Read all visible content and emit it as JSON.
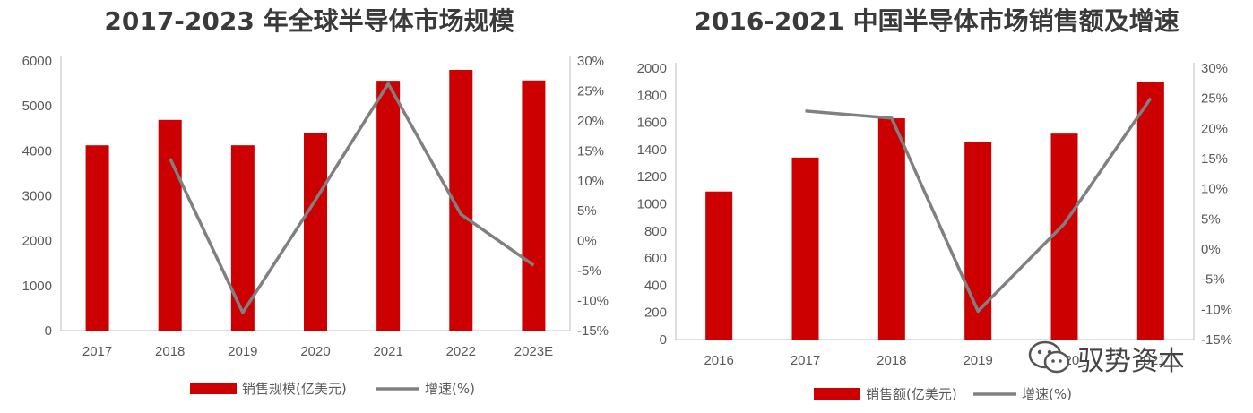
{
  "chart_data": [
    {
      "type": "bar+line",
      "title": "2017-2023 年全球半导体市场规模",
      "categories": [
        "2017",
        "2018",
        "2019",
        "2020",
        "2021",
        "2022",
        "2023E"
      ],
      "series": [
        {
          "name": "销售规模(亿美元)",
          "kind": "bar",
          "axis": "left",
          "color": "#cc0000",
          "values": [
            4122,
            4688,
            4123,
            4404,
            5559,
            5801,
            5566
          ]
        },
        {
          "name": "增速(%)",
          "kind": "line",
          "axis": "right",
          "color": "#808080",
          "values": [
            null,
            13.7,
            -12.0,
            6.8,
            26.2,
            4.4,
            -4.1
          ]
        }
      ],
      "ylim": [
        0,
        6000
      ],
      "yticks": [
        "0",
        "1000",
        "2000",
        "3000",
        "4000",
        "5000",
        "6000"
      ],
      "y2lim": [
        -15,
        30
      ],
      "y2ticks": [
        "-15%",
        "-10%",
        "-5%",
        "0%",
        "5%",
        "10%",
        "15%",
        "20%",
        "25%",
        "30%"
      ],
      "legend": "bottom",
      "grid": false
    },
    {
      "type": "bar+line",
      "title": "2016-2021 中国半导体市场销售额及增速",
      "categories": [
        "2016",
        "2017",
        "2018",
        "2019",
        "2020",
        "2021"
      ],
      "series": [
        {
          "name": "销售额(亿美元)",
          "kind": "bar",
          "axis": "left",
          "color": "#cc0000",
          "values": [
            1091,
            1341,
            1630,
            1456,
            1517,
            1900
          ]
        },
        {
          "name": "增速(%)",
          "kind": "line",
          "axis": "right",
          "color": "#808080",
          "values": [
            null,
            22.9,
            21.7,
            -10.3,
            4.2,
            25.0
          ]
        }
      ],
      "ylim": [
        0,
        2000
      ],
      "yticks": [
        "0",
        "200",
        "400",
        "600",
        "800",
        "1000",
        "1200",
        "1400",
        "1600",
        "1800",
        "2000"
      ],
      "y2lim": [
        -15,
        30
      ],
      "y2ticks": [
        "-15%",
        "-10%",
        "-5%",
        "0%",
        "5%",
        "10%",
        "15%",
        "20%",
        "25%",
        "30%"
      ],
      "legend": "bottom",
      "grid": false
    }
  ],
  "watermark": {
    "icon": "wechat-icon",
    "text": "驭势资本"
  }
}
